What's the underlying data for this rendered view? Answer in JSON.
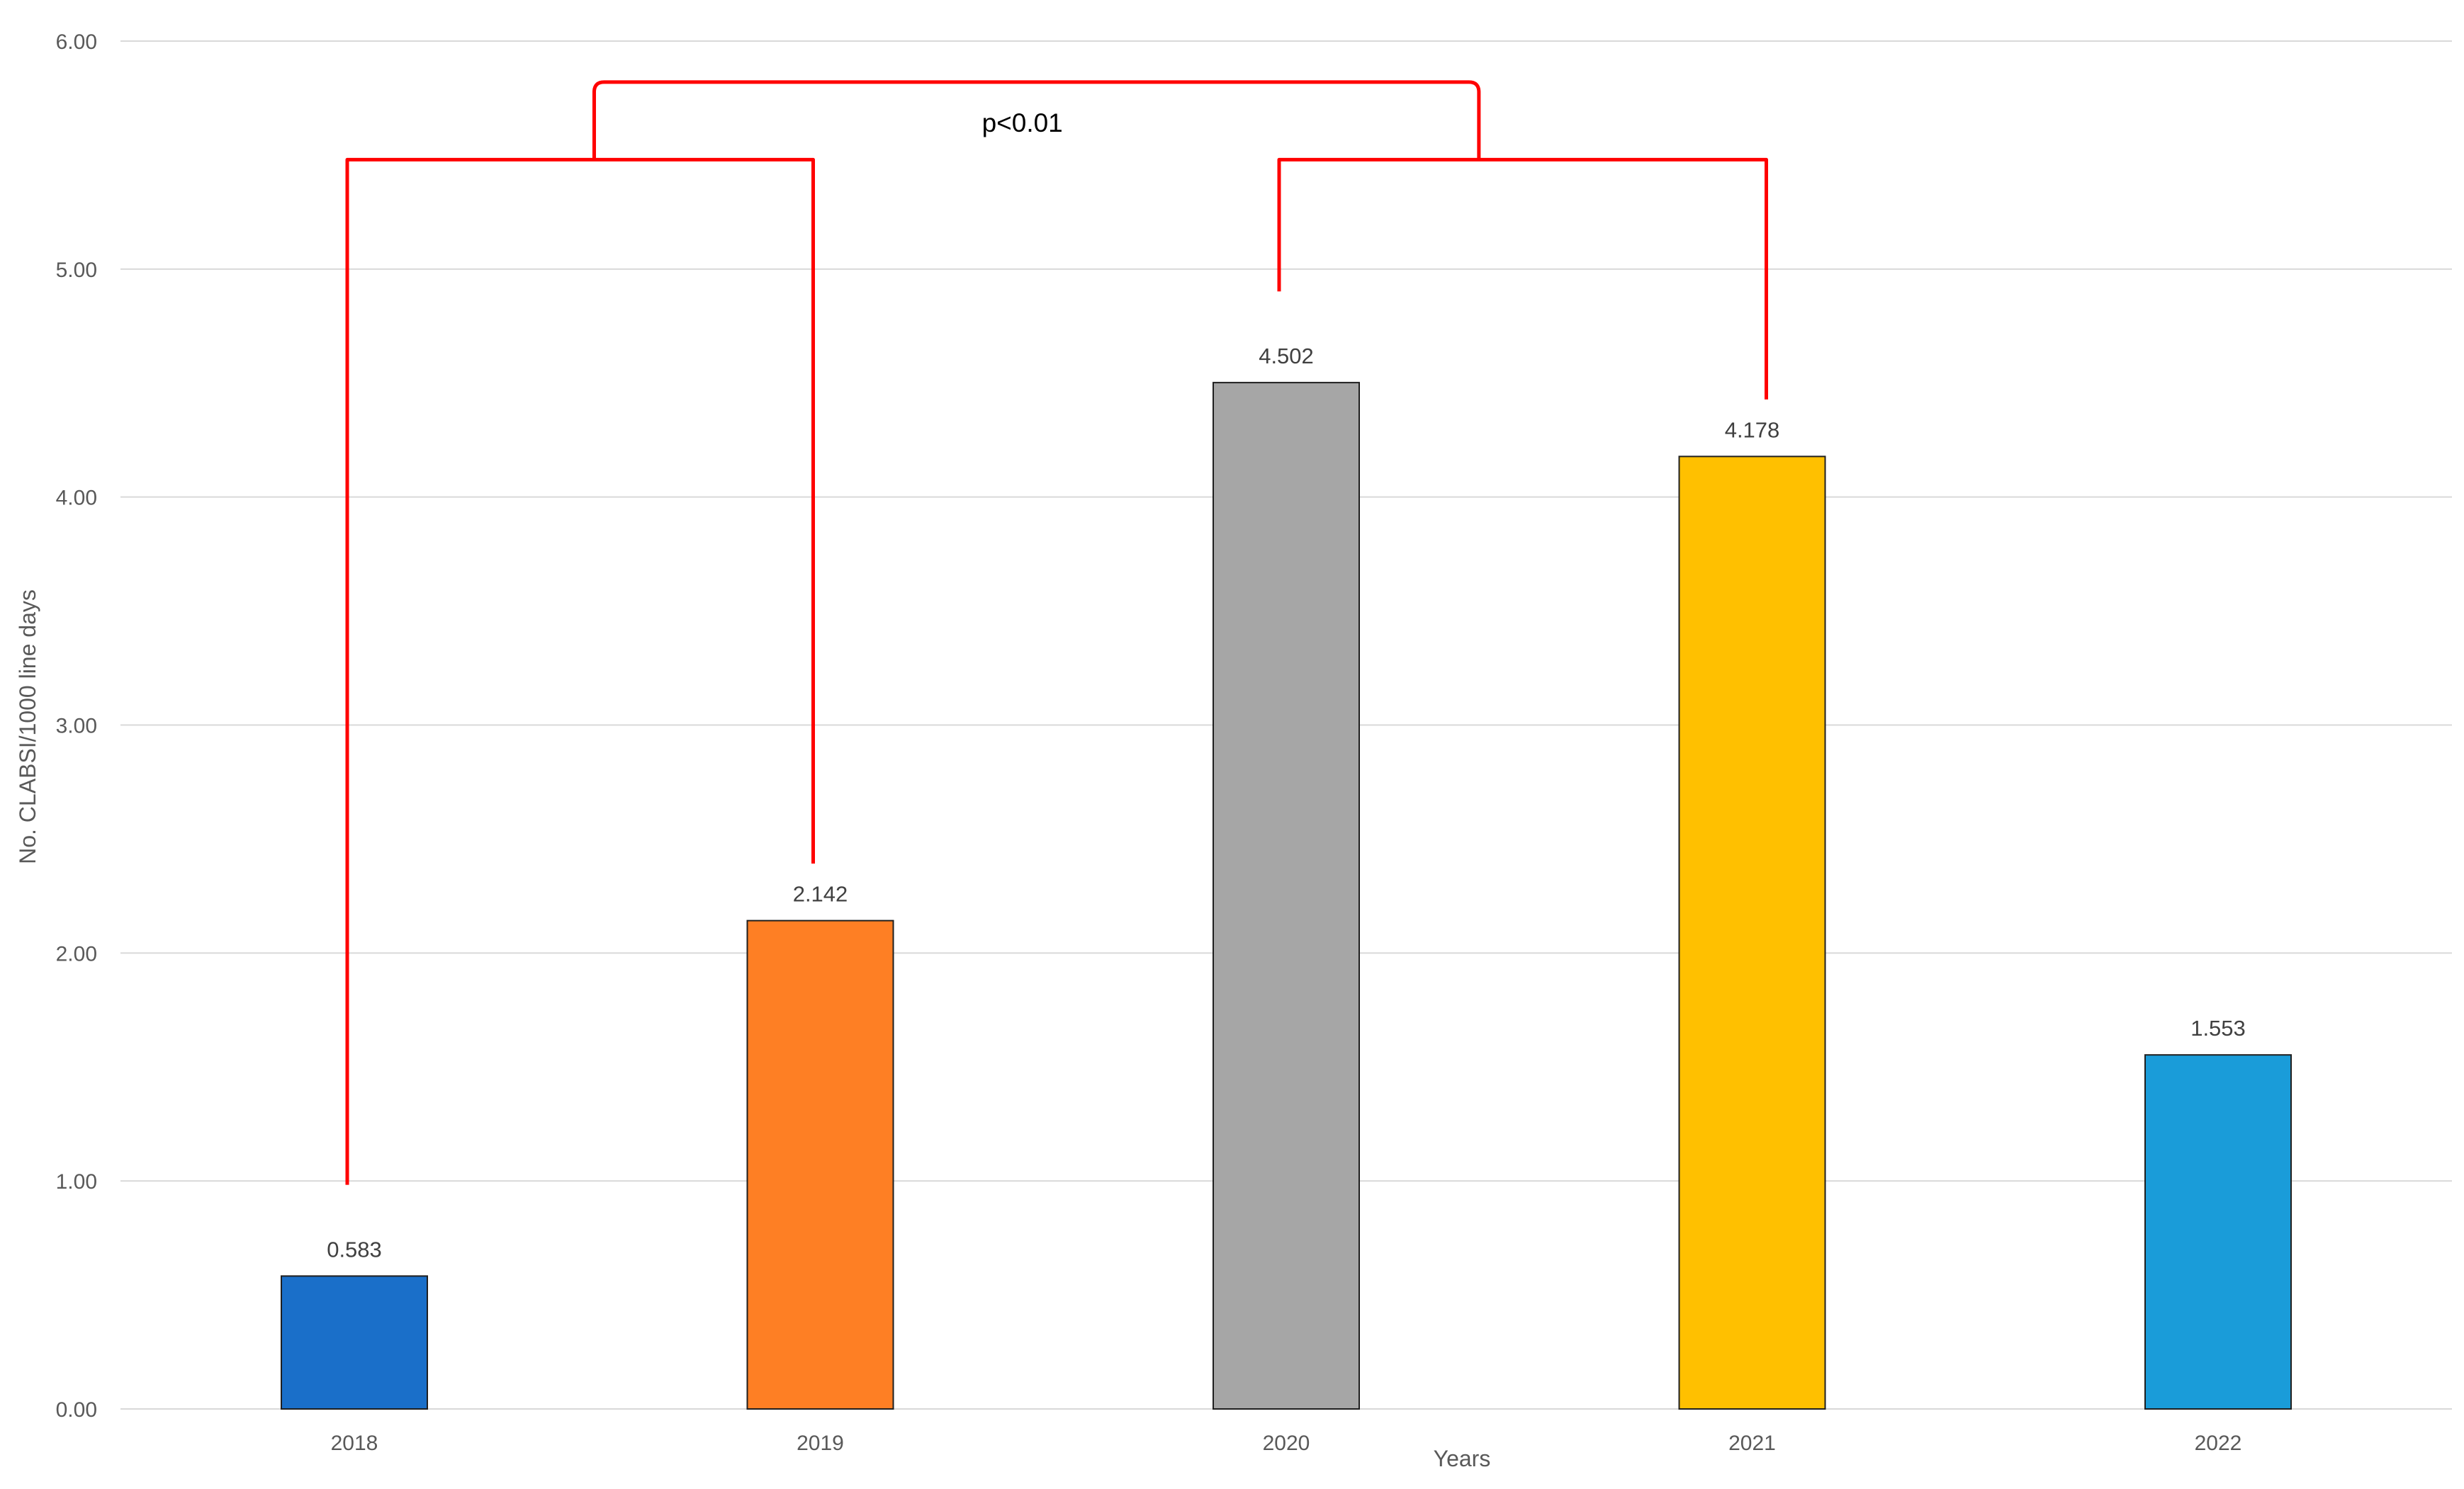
{
  "chart_data": {
    "type": "bar",
    "title": "",
    "xlabel": "Years",
    "ylabel": "No. CLABSI/1000 line days",
    "ylim": [
      0,
      6
    ],
    "y_ticks": [
      "0.00",
      "1.00",
      "2.00",
      "3.00",
      "4.00",
      "5.00",
      "6.00"
    ],
    "grid": true,
    "legend": "none",
    "categories": [
      "2018",
      "2019",
      "2020",
      "2021",
      "2022"
    ],
    "values": [
      0.583,
      2.142,
      4.502,
      4.178,
      1.553
    ],
    "data_labels": [
      "0.583",
      "2.142",
      "4.502",
      "4.178",
      "1.553"
    ],
    "bar_colors": [
      "#1a6fc9",
      "#fe7f24",
      "#a6a6a6",
      "#ffc000",
      "#1a9cd9"
    ],
    "annotations": [
      {
        "type": "significance-bracket",
        "text": "p<0.01",
        "color": "#ff0000",
        "compares": [
          [
            "2018",
            "2019"
          ],
          [
            "2020",
            "2021"
          ]
        ]
      }
    ]
  }
}
